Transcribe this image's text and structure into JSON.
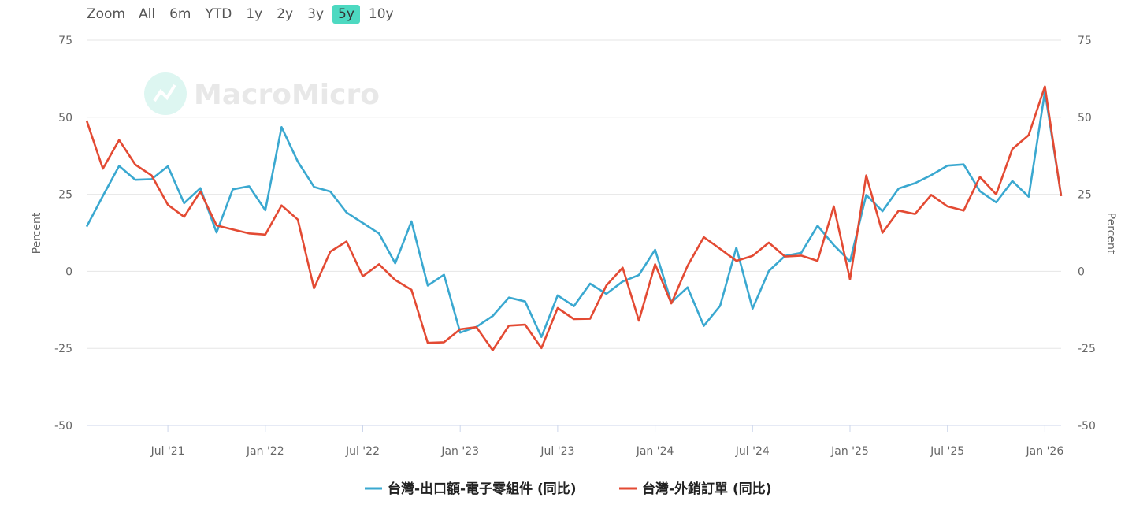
{
  "zoom": {
    "label": "Zoom",
    "options": [
      "All",
      "6m",
      "YTD",
      "1y",
      "2y",
      "3y",
      "5y",
      "10y"
    ],
    "active": "5y",
    "active_color": "#4dd9c1"
  },
  "watermark": {
    "text": "MacroMicro",
    "icon": "chart-line-icon"
  },
  "chart_data": {
    "type": "line",
    "title": "",
    "ylabel_left": "Percent",
    "ylabel_right": "Percent",
    "ylim": [
      -50,
      75
    ],
    "yticks": [
      "75",
      "50",
      "25",
      "0",
      "-25",
      "-50"
    ],
    "ytick_values": [
      75,
      50,
      25,
      0,
      -25,
      -50
    ],
    "xlim": [
      "2021-02",
      "2026-02"
    ],
    "xticks": [
      {
        "label": "Jul '21",
        "date": "2021-07"
      },
      {
        "label": "Jan '22",
        "date": "2022-01"
      },
      {
        "label": "Jul '22",
        "date": "2022-07"
      },
      {
        "label": "Jan '23",
        "date": "2023-01"
      },
      {
        "label": "Jul '23",
        "date": "2023-07"
      },
      {
        "label": "Jan '24",
        "date": "2024-01"
      },
      {
        "label": "Jul '24",
        "date": "2024-07"
      },
      {
        "label": "Jan '25",
        "date": "2025-01"
      },
      {
        "label": "Jul '25",
        "date": "2025-07"
      },
      {
        "label": "Jan '26",
        "date": "2026-01"
      }
    ],
    "grid": true,
    "legend_position": "bottom-center",
    "x": [
      "2021-02",
      "2021-03",
      "2021-04",
      "2021-05",
      "2021-06",
      "2021-07",
      "2021-08",
      "2021-09",
      "2021-10",
      "2021-11",
      "2021-12",
      "2022-01",
      "2022-02",
      "2022-03",
      "2022-04",
      "2022-05",
      "2022-06",
      "2022-07",
      "2022-08",
      "2022-09",
      "2022-10",
      "2022-11",
      "2022-12",
      "2023-01",
      "2023-02",
      "2023-03",
      "2023-04",
      "2023-05",
      "2023-06",
      "2023-07",
      "2023-08",
      "2023-09",
      "2023-10",
      "2023-11",
      "2023-12",
      "2024-01",
      "2024-02",
      "2024-03",
      "2024-04",
      "2024-05",
      "2024-06",
      "2024-07",
      "2024-08",
      "2024-09",
      "2024-10",
      "2024-11",
      "2024-12",
      "2025-01",
      "2025-02",
      "2025-03",
      "2025-04",
      "2025-05",
      "2025-06",
      "2025-07",
      "2025-08",
      "2025-09",
      "2025-10",
      "2025-11",
      "2025-12",
      "2026-01",
      "2026-02"
    ],
    "series": [
      {
        "name": "台灣-出口額-電子零組件 (同比)",
        "color": "#3aa8d0",
        "values": [
          14.5,
          24.5,
          34.2,
          29.7,
          29.9,
          34.1,
          22.1,
          27,
          12.6,
          26.6,
          27.6,
          19.8,
          46.8,
          35.6,
          27.4,
          25.9,
          19.1,
          15.7,
          12.3,
          2.6,
          16.2,
          -4.6,
          -1.1,
          -19.9,
          -18,
          -14.5,
          -8.5,
          -9.8,
          -21.3,
          -7.8,
          -11.3,
          -4,
          -7.3,
          -3.3,
          -1.2,
          7,
          -10.1,
          -5.2,
          -17.7,
          -11.2,
          7.7,
          -12.1,
          0.1,
          5,
          6,
          14.8,
          8.5,
          3.2,
          24.8,
          19.5,
          26.9,
          28.6,
          31.2,
          34.3,
          34.7,
          26,
          22.4,
          29.3,
          24.2,
          58.3,
          24.6
        ]
      },
      {
        "name": "台灣-外銷訂單 (同比)",
        "color": "#e34a33",
        "values": [
          48.9,
          33.3,
          42.6,
          34.6,
          31.1,
          21.6,
          17.7,
          25.9,
          14.9,
          13.6,
          12.3,
          11.9,
          21.4,
          16.8,
          -5.5,
          6.4,
          9.7,
          -1.6,
          2.3,
          -2.8,
          -6,
          -23.2,
          -23,
          -18.8,
          -18.1,
          -25.6,
          -17.6,
          -17.3,
          -24.9,
          -11.9,
          -15.5,
          -15.4,
          -4.6,
          1.2,
          -16,
          2.3,
          -10.4,
          1.8,
          11.1,
          7.3,
          3.4,
          5,
          9.3,
          4.8,
          5.1,
          3.4,
          21.1,
          -2.6,
          31.1,
          12.5,
          19.7,
          18.6,
          24.8,
          21.1,
          19.7,
          30.6,
          25,
          39.7,
          44.2,
          60,
          24.4
        ]
      }
    ]
  }
}
